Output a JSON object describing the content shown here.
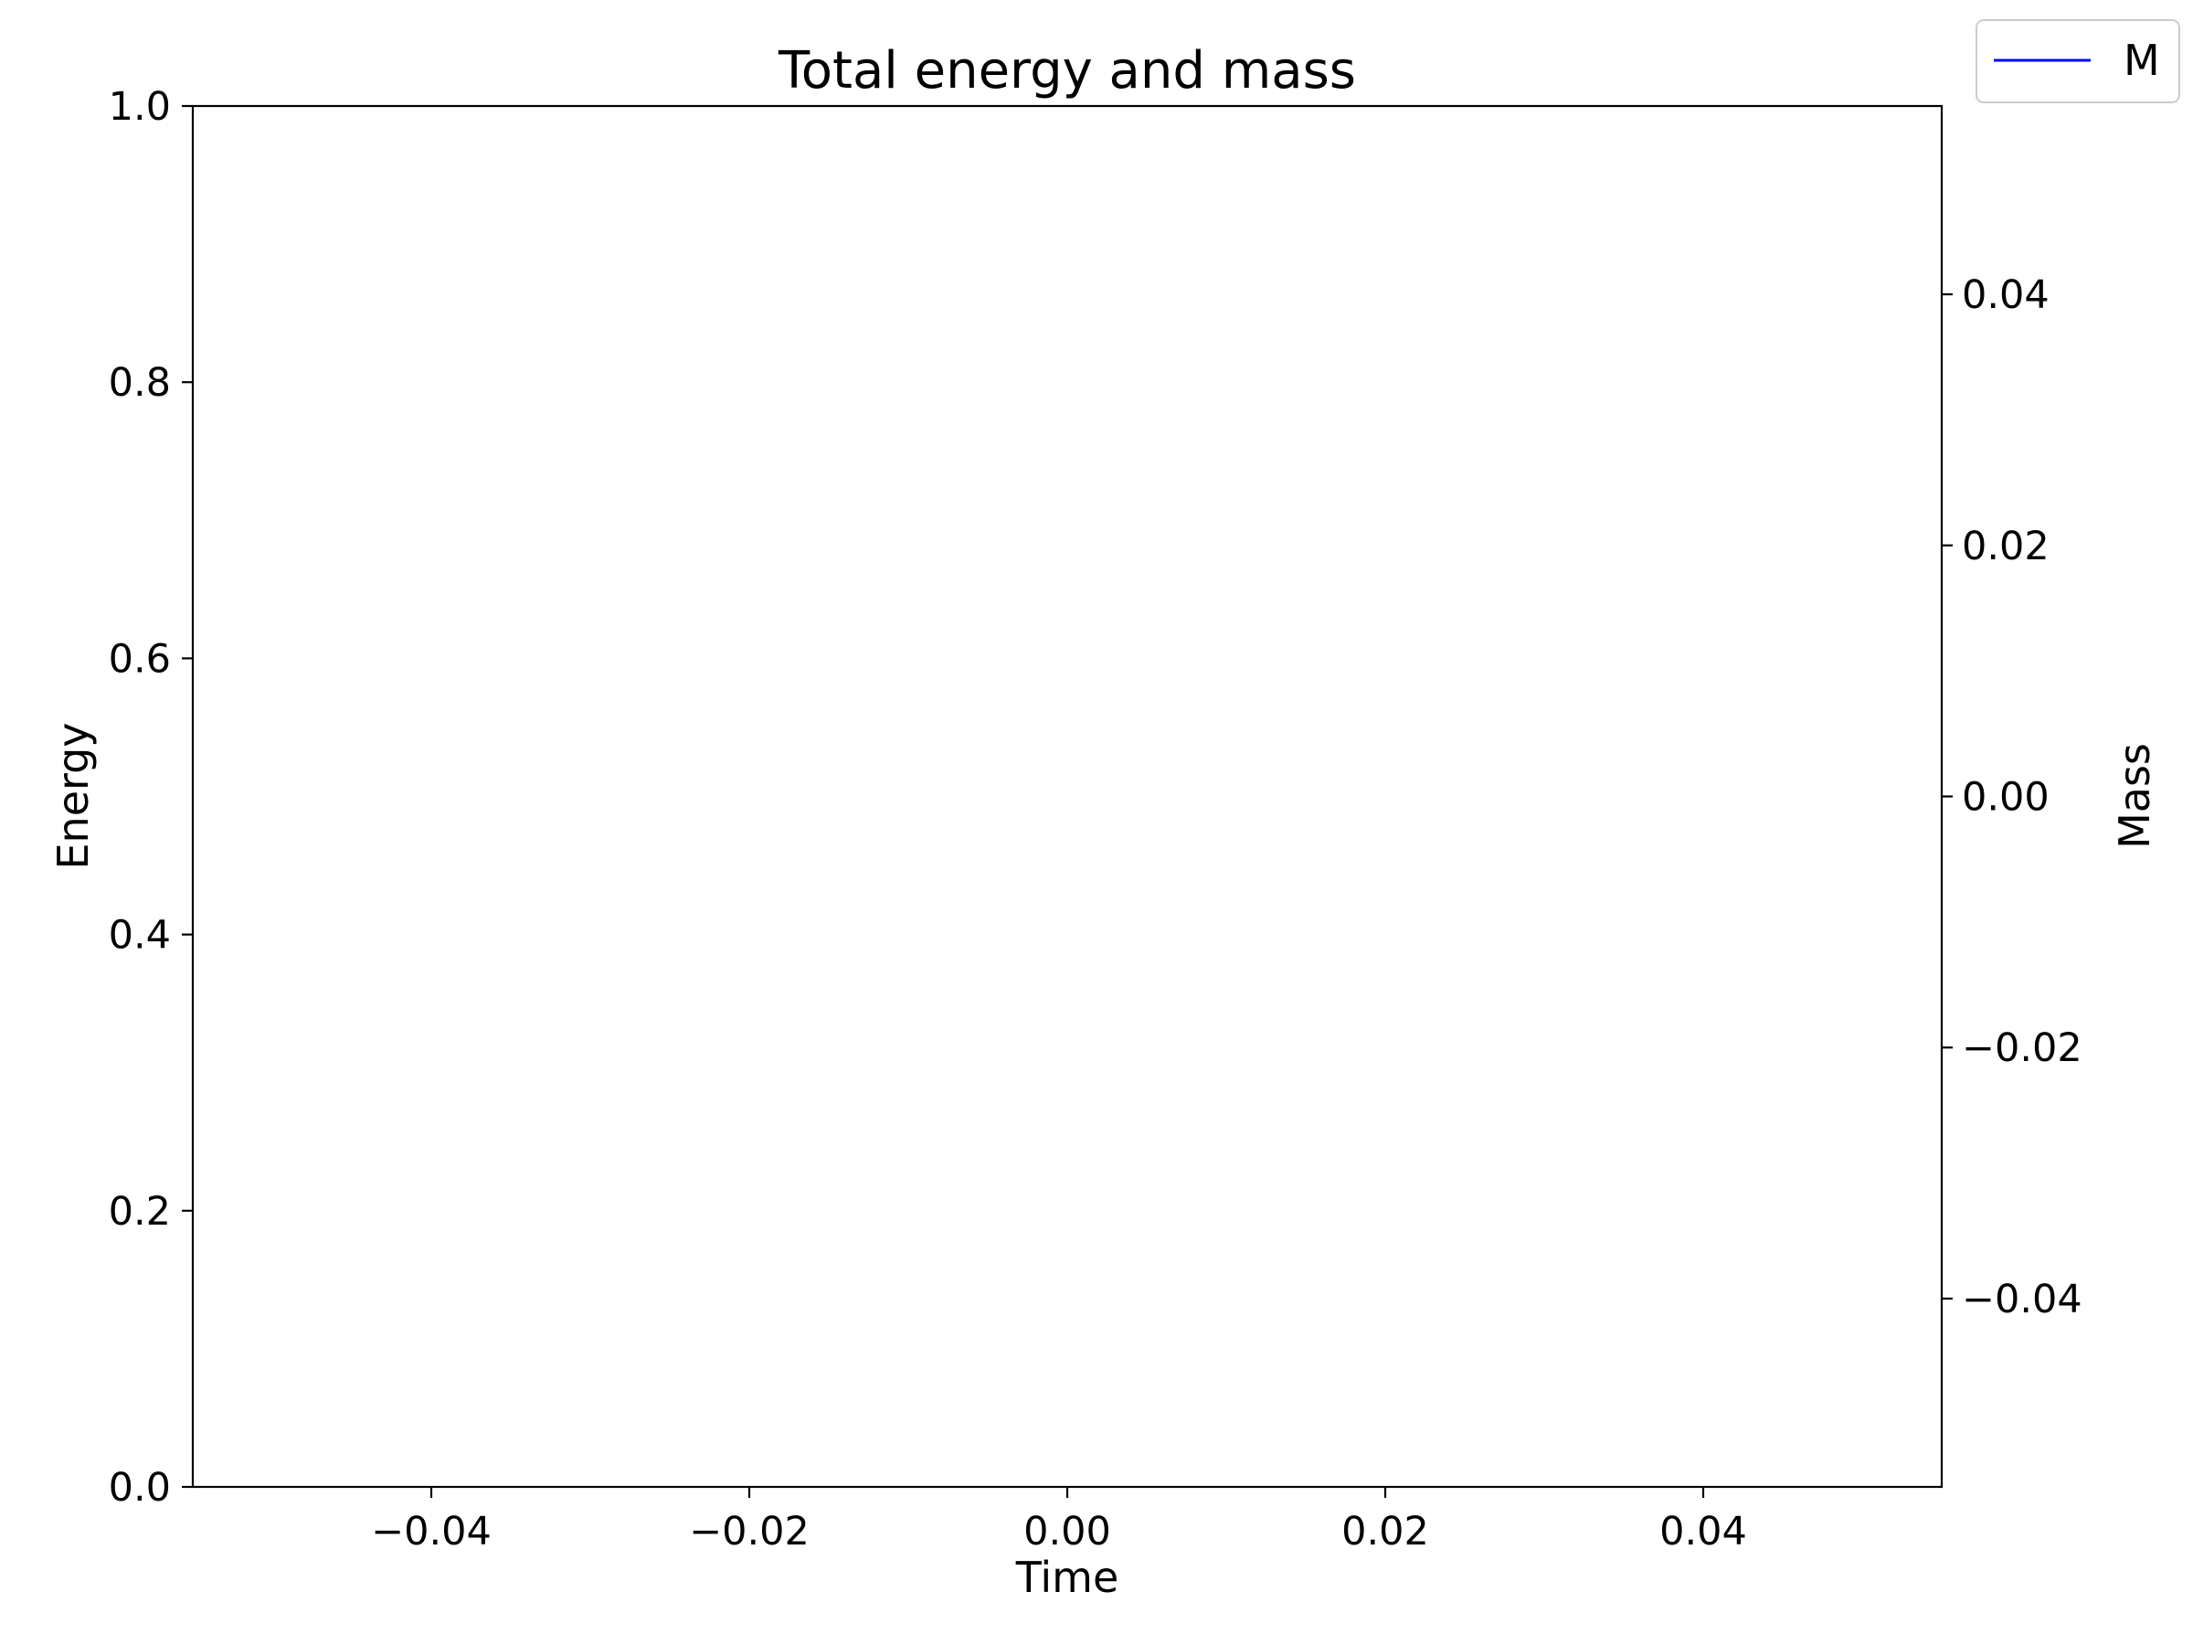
{
  "chart_data": {
    "type": "line",
    "title": "Total energy and mass",
    "xlabel": "Time",
    "ylabel": "Energy",
    "y2label": "Mass",
    "xlim": [
      -0.055,
      0.055
    ],
    "ylim": [
      0,
      1
    ],
    "y2lim": [
      -0.055,
      0.055
    ],
    "x_ticks": [
      -0.04,
      -0.02,
      0.0,
      0.02,
      0.04
    ],
    "x_tick_labels": [
      "−0.04",
      "−0.02",
      "0.00",
      "0.02",
      "0.04"
    ],
    "y_ticks": [
      0.0,
      0.2,
      0.4,
      0.6,
      0.8,
      1.0
    ],
    "y_tick_labels": [
      "0.0",
      "0.2",
      "0.4",
      "0.6",
      "0.8",
      "1.0"
    ],
    "y2_ticks": [
      -0.04,
      -0.02,
      0.0,
      0.02,
      0.04
    ],
    "y2_tick_labels": [
      "−0.04",
      "−0.02",
      "0.00",
      "0.02",
      "0.04"
    ],
    "grid": false,
    "legend_position": "top-right",
    "series": [
      {
        "name": "M",
        "axis": "right",
        "color": "#0000ff",
        "x": [],
        "y": []
      }
    ]
  }
}
